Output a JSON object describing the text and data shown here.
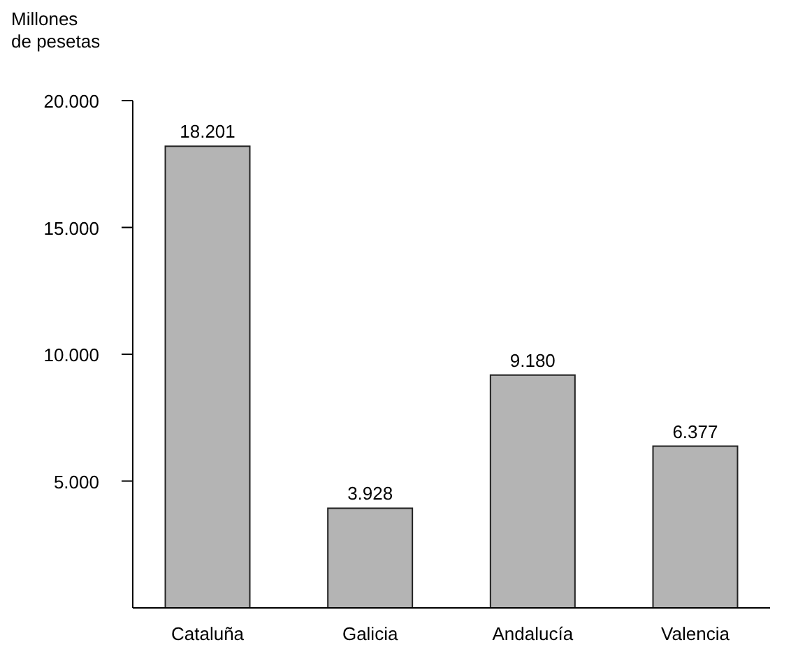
{
  "chart_data": {
    "type": "bar",
    "ylabel": "Millones\nde pesetas",
    "categories": [
      "Cataluña",
      "Galicia",
      "Andalucía",
      "Valencia"
    ],
    "values": [
      18201,
      3928,
      9180,
      6377
    ],
    "value_labels": [
      "18.201",
      "3.928",
      "9.180",
      "6.377"
    ],
    "color": "#b4b4b4",
    "ylim": [
      0,
      20000
    ],
    "yticks": [
      {
        "value": 5000,
        "label": "5.000"
      },
      {
        "value": 10000,
        "label": "10.000"
      },
      {
        "value": 15000,
        "label": "15.000"
      },
      {
        "value": 20000,
        "label": "20.000"
      }
    ],
    "grid": false
  }
}
